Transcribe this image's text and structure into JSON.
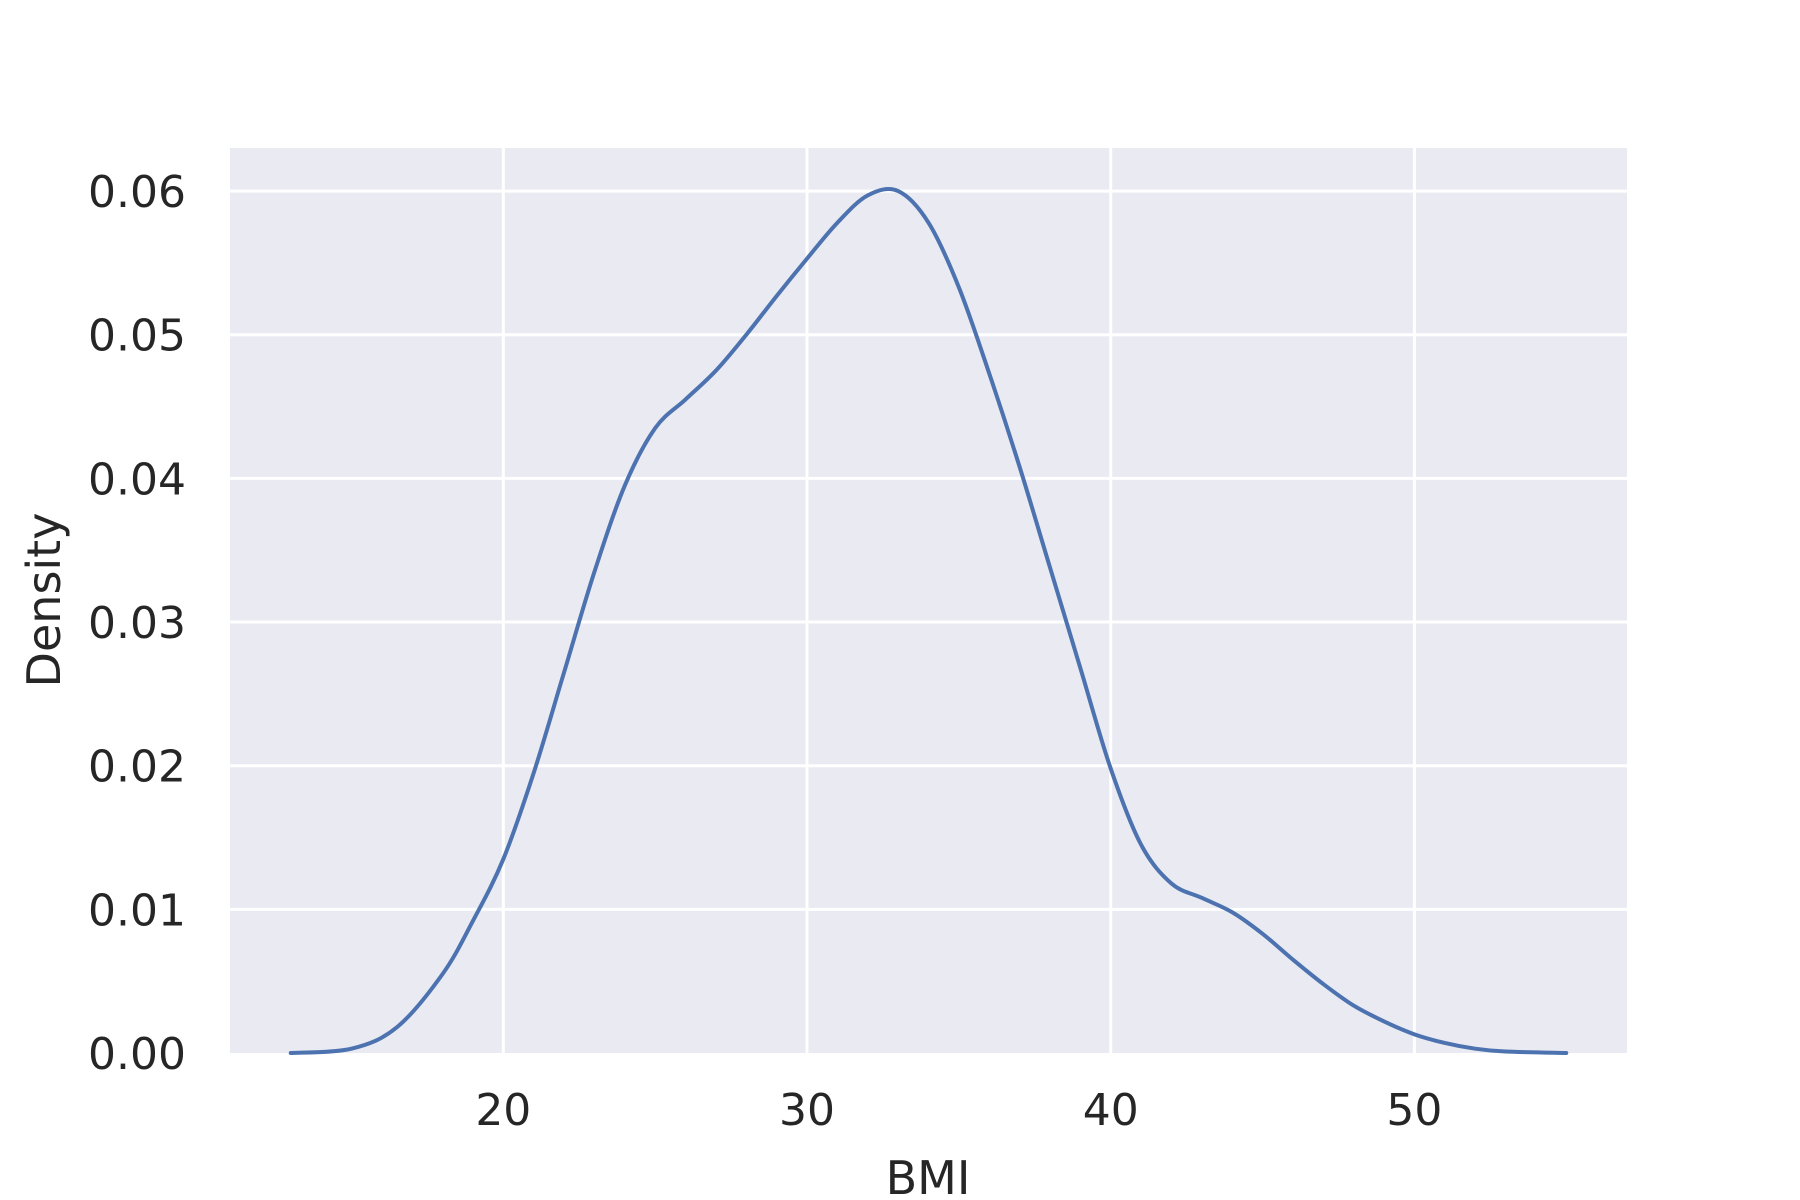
{
  "chart_data": {
    "type": "line",
    "xlabel": "BMI",
    "ylabel": "Density",
    "xlim": [
      11,
      57
    ],
    "ylim": [
      0,
      0.063
    ],
    "x_ticks": [
      20,
      30,
      40,
      50
    ],
    "y_ticks": [
      0.0,
      0.01,
      0.02,
      0.03,
      0.04,
      0.05,
      0.06
    ],
    "x_tick_labels": [
      "20",
      "30",
      "40",
      "50"
    ],
    "y_tick_labels": [
      "0.00",
      "0.01",
      "0.02",
      "0.03",
      "0.04",
      "0.05",
      "0.06"
    ],
    "grid": true,
    "colors": {
      "background": "#eaeaf2",
      "grid": "#ffffff",
      "line": "#4c72b0"
    },
    "series": [
      {
        "x": [
          13.0,
          15.0,
          16.5,
          18.0,
          19.0,
          20.0,
          21.0,
          22.0,
          23.0,
          24.0,
          25.0,
          26.0,
          27.0,
          28.0,
          29.0,
          30.0,
          31.0,
          32.0,
          33.0,
          34.0,
          35.0,
          36.0,
          37.0,
          38.0,
          39.0,
          40.0,
          41.0,
          42.0,
          43.0,
          44.0,
          45.0,
          46.0,
          47.0,
          48.0,
          49.0,
          50.0,
          51.0,
          52.0,
          53.0,
          55.0
        ],
        "y": [
          0.0,
          0.0003,
          0.0018,
          0.0055,
          0.0092,
          0.0135,
          0.0195,
          0.0265,
          0.0335,
          0.0395,
          0.0435,
          0.0455,
          0.0475,
          0.05,
          0.0527,
          0.0553,
          0.0578,
          0.0597,
          0.06,
          0.0578,
          0.0533,
          0.0473,
          0.0408,
          0.0338,
          0.0268,
          0.0198,
          0.0145,
          0.0118,
          0.0108,
          0.0098,
          0.0083,
          0.0065,
          0.0048,
          0.0033,
          0.0022,
          0.0013,
          0.0007,
          0.0003,
          0.0001,
          0.0
        ]
      }
    ]
  }
}
